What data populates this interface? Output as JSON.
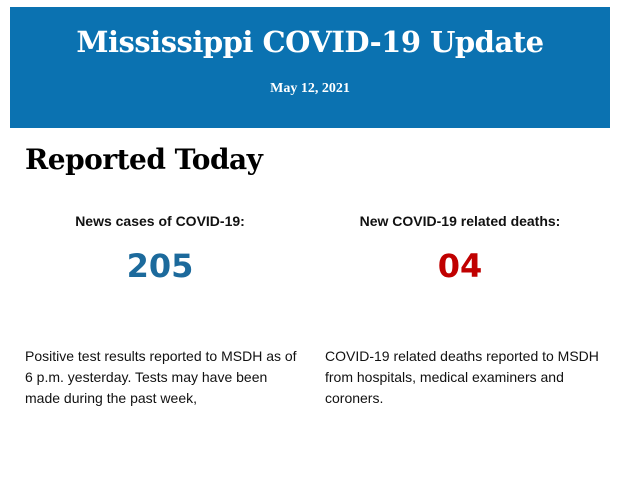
{
  "header": {
    "title": "Mississippi COVID-19 Update",
    "date": "May 12, 2021",
    "background_color": "#0b72b1"
  },
  "section": {
    "title": "Reported Today"
  },
  "cases": {
    "label": "News cases of COVID-19:",
    "value": "205",
    "color": "#1c6a9c",
    "description": "Positive test results reported to MSDH as of 6 p.m. yesterday. Tests may have been made during the past week,"
  },
  "deaths": {
    "label": "New COVID-19 related deaths:",
    "value": "04",
    "color": "#c00000",
    "description": "COVID-19 related deaths reported to MSDH from hospitals, medical examiners and coroners."
  }
}
